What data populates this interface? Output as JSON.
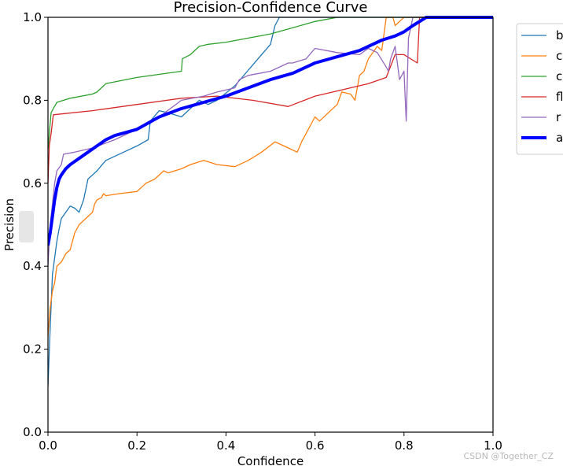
{
  "chart_data": {
    "type": "line",
    "title": "Precision-Confidence Curve",
    "xlabel": "Confidence",
    "ylabel": "Precision",
    "xlim": [
      0.0,
      1.0
    ],
    "ylim": [
      0.0,
      1.0
    ],
    "xticks": [
      0.0,
      0.2,
      0.4,
      0.6,
      0.8,
      1.0
    ],
    "yticks": [
      0.0,
      0.2,
      0.4,
      0.6,
      0.8,
      1.0
    ],
    "xtick_labels": [
      "0.0",
      "0.2",
      "0.4",
      "0.6",
      "0.8",
      "1.0"
    ],
    "ytick_labels": [
      "0.0",
      "0.2",
      "0.4",
      "0.6",
      "0.8",
      "1.0"
    ],
    "grid": false,
    "legend_position": "outside top-right (clipped)",
    "series": [
      {
        "name": "b",
        "color": "#1f77b4",
        "width": 1.3,
        "x": [
          0.0,
          0.005,
          0.01,
          0.015,
          0.02,
          0.025,
          0.03,
          0.04,
          0.05,
          0.06,
          0.07,
          0.08,
          0.09,
          0.1,
          0.11,
          0.13,
          0.17,
          0.2,
          0.225,
          0.23,
          0.25,
          0.27,
          0.3,
          0.32,
          0.34,
          0.36,
          0.38,
          0.42,
          0.46,
          0.5,
          0.51,
          0.52,
          1.0
        ],
        "y": [
          0.11,
          0.25,
          0.38,
          0.42,
          0.46,
          0.49,
          0.515,
          0.53,
          0.545,
          0.54,
          0.53,
          0.56,
          0.61,
          0.62,
          0.63,
          0.655,
          0.675,
          0.69,
          0.705,
          0.75,
          0.775,
          0.77,
          0.76,
          0.78,
          0.8,
          0.79,
          0.8,
          0.835,
          0.885,
          0.935,
          0.98,
          1.0,
          1.0
        ]
      },
      {
        "name": "c",
        "color": "#ff7f0e",
        "width": 1.3,
        "x": [
          0.0,
          0.005,
          0.01,
          0.015,
          0.02,
          0.03,
          0.04,
          0.05,
          0.06,
          0.07,
          0.08,
          0.09,
          0.1,
          0.105,
          0.11,
          0.12,
          0.125,
          0.13,
          0.16,
          0.2,
          0.22,
          0.24,
          0.26,
          0.27,
          0.3,
          0.32,
          0.35,
          0.38,
          0.42,
          0.45,
          0.48,
          0.51,
          0.55,
          0.56,
          0.57,
          0.58,
          0.59,
          0.6,
          0.61,
          0.63,
          0.65,
          0.66,
          0.68,
          0.69,
          0.7,
          0.71,
          0.72,
          0.74,
          0.75,
          0.76,
          0.775,
          0.78,
          0.8,
          1.0
        ],
        "y": [
          0.23,
          0.3,
          0.34,
          0.36,
          0.4,
          0.41,
          0.43,
          0.44,
          0.48,
          0.5,
          0.51,
          0.52,
          0.53,
          0.55,
          0.56,
          0.565,
          0.575,
          0.57,
          0.575,
          0.58,
          0.6,
          0.61,
          0.63,
          0.625,
          0.635,
          0.645,
          0.655,
          0.645,
          0.64,
          0.655,
          0.675,
          0.7,
          0.68,
          0.675,
          0.7,
          0.72,
          0.74,
          0.76,
          0.75,
          0.77,
          0.79,
          0.82,
          0.815,
          0.8,
          0.86,
          0.87,
          0.9,
          0.93,
          0.92,
          1.0,
          1.0,
          0.98,
          1.0,
          1.0
        ]
      },
      {
        "name": "c",
        "color": "#2ca02c",
        "width": 1.3,
        "x": [
          0.0,
          0.003,
          0.007,
          0.012,
          0.02,
          0.05,
          0.1,
          0.11,
          0.13,
          0.2,
          0.3,
          0.302,
          0.32,
          0.34,
          0.36,
          0.4,
          0.45,
          0.5,
          0.55,
          0.6,
          0.65,
          1.0
        ],
        "y": [
          0.68,
          0.72,
          0.77,
          0.78,
          0.795,
          0.805,
          0.815,
          0.82,
          0.84,
          0.855,
          0.87,
          0.9,
          0.91,
          0.93,
          0.935,
          0.94,
          0.95,
          0.96,
          0.975,
          0.99,
          1.0,
          1.0
        ]
      },
      {
        "name": "fl",
        "color": "#d62728",
        "width": 1.3,
        "x": [
          0.0,
          0.003,
          0.007,
          0.012,
          0.1,
          0.2,
          0.3,
          0.38,
          0.46,
          0.54,
          0.6,
          0.66,
          0.72,
          0.76,
          0.78,
          0.8,
          0.83,
          0.835,
          0.84,
          1.0
        ],
        "y": [
          0.6,
          0.69,
          0.72,
          0.765,
          0.775,
          0.79,
          0.805,
          0.81,
          0.8,
          0.785,
          0.81,
          0.825,
          0.84,
          0.855,
          0.91,
          0.91,
          0.89,
          1.0,
          1.0,
          1.0
        ],
        "note": "red series"
      },
      {
        "name": "r",
        "color": "#9467bd",
        "width": 1.3,
        "x": [
          0.0,
          0.005,
          0.01,
          0.015,
          0.02,
          0.03,
          0.035,
          0.06,
          0.1,
          0.15,
          0.2,
          0.25,
          0.3,
          0.35,
          0.38,
          0.42,
          0.43,
          0.45,
          0.5,
          0.54,
          0.55,
          0.58,
          0.6,
          0.65,
          0.7,
          0.72,
          0.74,
          0.76,
          0.765,
          0.77,
          0.78,
          0.79,
          0.8,
          0.805,
          0.81,
          0.82,
          1.0
        ],
        "y": [
          0.4,
          0.5,
          0.55,
          0.6,
          0.63,
          0.645,
          0.67,
          0.675,
          0.685,
          0.705,
          0.73,
          0.76,
          0.8,
          0.81,
          0.82,
          0.83,
          0.85,
          0.86,
          0.87,
          0.89,
          0.89,
          0.9,
          0.925,
          0.915,
          0.91,
          0.925,
          0.915,
          0.88,
          0.87,
          0.9,
          0.93,
          0.85,
          0.87,
          0.75,
          0.95,
          1.0,
          1.0
        ]
      },
      {
        "name": "a",
        "color": "#0000ff",
        "width": 4,
        "x": [
          0.0,
          0.005,
          0.01,
          0.015,
          0.02,
          0.025,
          0.03,
          0.04,
          0.05,
          0.07,
          0.09,
          0.11,
          0.13,
          0.15,
          0.2,
          0.25,
          0.3,
          0.35,
          0.4,
          0.45,
          0.5,
          0.55,
          0.6,
          0.65,
          0.7,
          0.75,
          0.78,
          0.8,
          0.82,
          0.85,
          0.9,
          1.0
        ],
        "y": [
          0.45,
          0.48,
          0.52,
          0.56,
          0.59,
          0.61,
          0.62,
          0.635,
          0.645,
          0.66,
          0.675,
          0.69,
          0.705,
          0.715,
          0.73,
          0.76,
          0.78,
          0.795,
          0.81,
          0.83,
          0.85,
          0.865,
          0.89,
          0.905,
          0.92,
          0.945,
          0.955,
          0.965,
          0.98,
          1.0,
          1.0,
          1.0
        ]
      }
    ]
  },
  "watermark": "CSDN @Together_CZ"
}
